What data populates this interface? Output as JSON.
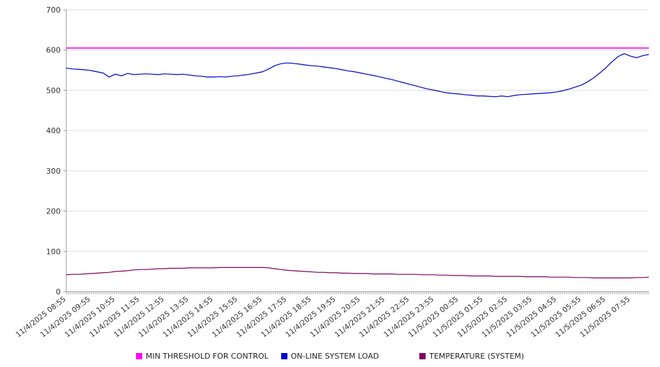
{
  "chart_data": {
    "type": "line",
    "title": "",
    "xlabel": "",
    "ylabel": "",
    "ylim": [
      0,
      700
    ],
    "yticks": [
      0,
      100,
      200,
      300,
      400,
      500,
      600,
      700
    ],
    "grid": "horizontal",
    "legend_position": "bottom",
    "points_per_label": 4,
    "x_labels": [
      "11/4/2025 08:55",
      "11/4/2025 09:55",
      "11/4/2025 10:55",
      "11/4/2025 11:55",
      "11/4/2025 12:55",
      "11/4/2025 13:55",
      "11/4/2025 14:55",
      "11/4/2025 15:55",
      "11/4/2025 16:55",
      "11/4/2025 17:55",
      "11/4/2025 18:55",
      "11/4/2025 19:55",
      "11/4/2025 20:55",
      "11/4/2025 21:55",
      "11/4/2025 22:55",
      "11/4/2025 23:55",
      "11/5/2025 00:55",
      "11/5/2025 01:55",
      "11/5/2025 02:55",
      "11/5/2025 03:55",
      "11/5/2025 04:55",
      "11/5/2025 05:55",
      "11/5/2025 06:55",
      "11/5/2025 07:55"
    ],
    "series": [
      {
        "name": "MIN THRESHOLD FOR CONTROL",
        "color": "#ff00ff",
        "constant": 605
      },
      {
        "name": "ON-LINE SYSTEM LOAD",
        "color": "#0000cd",
        "values": [
          555,
          553,
          552,
          551,
          549,
          546,
          543,
          533,
          540,
          536,
          542,
          539,
          540,
          541,
          540,
          539,
          541,
          540,
          539,
          540,
          538,
          536,
          535,
          533,
          533,
          534,
          533,
          535,
          536,
          538,
          540,
          543,
          546,
          553,
          561,
          566,
          568,
          567,
          565,
          563,
          561,
          560,
          558,
          556,
          554,
          551,
          548,
          546,
          543,
          540,
          537,
          534,
          530,
          527,
          523,
          519,
          515,
          511,
          507,
          503,
          500,
          497,
          494,
          492,
          491,
          489,
          488,
          486,
          486,
          485,
          484,
          486,
          484,
          487,
          489,
          490,
          491,
          492,
          493,
          494,
          496,
          499,
          503,
          508,
          513,
          521,
          531,
          543,
          556,
          571,
          584,
          591,
          585,
          581,
          586,
          589
        ]
      },
      {
        "name": "TEMPERATURE (SYSTEM)",
        "color": "#800060",
        "values": [
          42,
          43,
          43,
          44,
          45,
          46,
          47,
          48,
          50,
          51,
          52,
          54,
          55,
          55,
          56,
          57,
          57,
          58,
          58,
          58,
          59,
          59,
          59,
          59,
          59,
          60,
          60,
          60,
          60,
          60,
          60,
          60,
          60,
          59,
          57,
          55,
          53,
          52,
          51,
          50,
          49,
          48,
          48,
          47,
          47,
          46,
          46,
          45,
          45,
          45,
          44,
          44,
          44,
          44,
          43,
          43,
          43,
          43,
          42,
          42,
          42,
          41,
          41,
          40,
          40,
          40,
          39,
          39,
          39,
          39,
          38,
          38,
          38,
          38,
          38,
          37,
          37,
          37,
          37,
          36,
          36,
          36,
          36,
          35,
          35,
          35,
          34,
          34,
          34,
          34,
          34,
          34,
          34,
          35,
          35,
          36
        ]
      }
    ]
  }
}
